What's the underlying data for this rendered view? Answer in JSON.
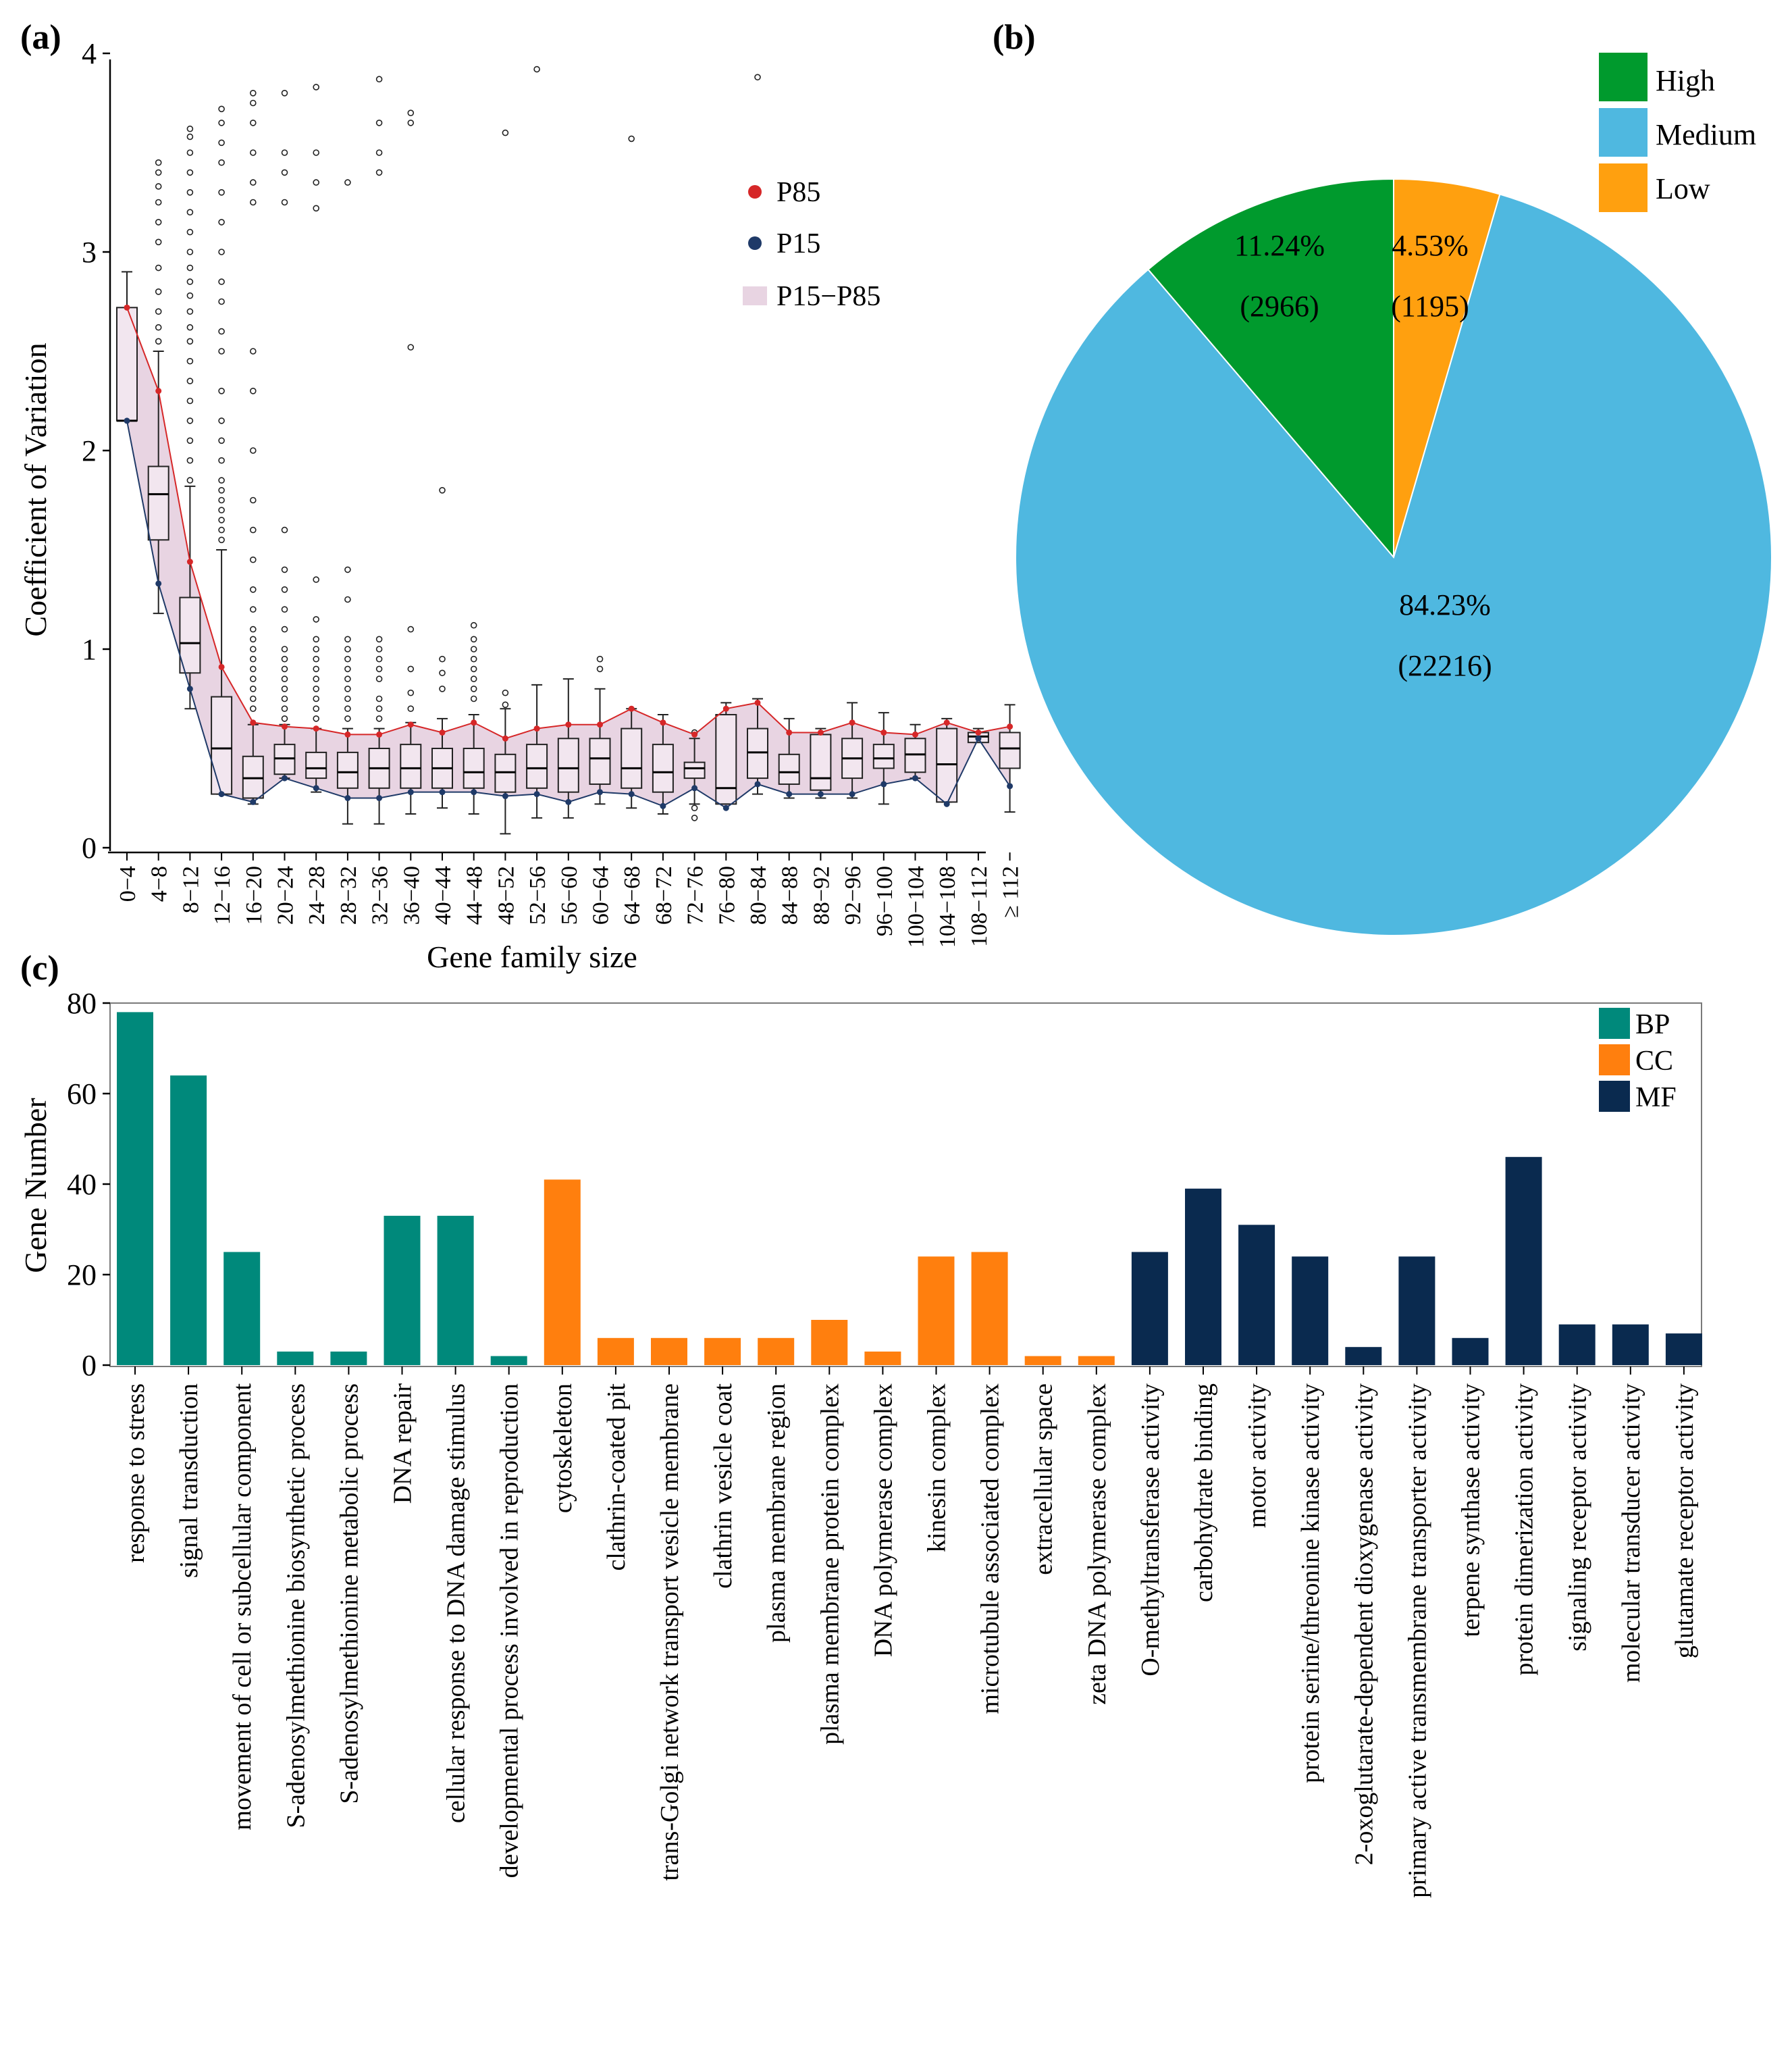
{
  "panel_labels": [
    "(a)",
    "(b)",
    "(c)"
  ],
  "chart_data": [
    {
      "panel": "(a)",
      "type": "box",
      "xlabel": "Gene family size",
      "ylabel": "Coefficient of Variation",
      "ylim": [
        0,
        4
      ],
      "yticks": [
        0,
        1,
        2,
        3,
        4
      ],
      "legend": [
        "P85",
        "P15",
        "P15−P85"
      ],
      "legend_position": "top-right",
      "colors": {
        "p85": "#d62728",
        "p15": "#1f3a68",
        "band": "#e8d4e2",
        "box_fill": "#f2e6ef"
      },
      "categories": [
        "0−4",
        "4−8",
        "8−12",
        "12−16",
        "16−20",
        "20−24",
        "24−28",
        "28−32",
        "32−36",
        "36−40",
        "40−44",
        "44−48",
        "48−52",
        "52−56",
        "56−60",
        "60−64",
        "64−68",
        "68−72",
        "72−76",
        "76−80",
        "80−84",
        "84−88",
        "88−92",
        "92−96",
        "96−100",
        "100−104",
        "104−108",
        "108−112",
        "≥ 112"
      ],
      "q1": [
        2.15,
        1.55,
        0.88,
        0.27,
        0.25,
        0.37,
        0.35,
        0.3,
        0.3,
        0.3,
        0.3,
        0.3,
        0.28,
        0.3,
        0.28,
        0.32,
        0.3,
        0.28,
        0.35,
        0.22,
        0.35,
        0.32,
        0.29,
        0.35,
        0.4,
        0.38,
        0.23,
        0.53,
        0.4
      ],
      "median": [
        2.15,
        1.78,
        1.03,
        0.5,
        0.35,
        0.45,
        0.4,
        0.38,
        0.4,
        0.4,
        0.4,
        0.38,
        0.38,
        0.4,
        0.4,
        0.45,
        0.4,
        0.38,
        0.4,
        0.3,
        0.48,
        0.38,
        0.35,
        0.45,
        0.45,
        0.47,
        0.42,
        0.56,
        0.5
      ],
      "q3": [
        2.72,
        1.92,
        1.26,
        0.76,
        0.46,
        0.52,
        0.48,
        0.48,
        0.5,
        0.52,
        0.5,
        0.5,
        0.47,
        0.52,
        0.55,
        0.55,
        0.6,
        0.52,
        0.43,
        0.67,
        0.6,
        0.47,
        0.57,
        0.55,
        0.52,
        0.55,
        0.6,
        0.58,
        0.58
      ],
      "whisker_low": [
        2.15,
        1.18,
        0.7,
        0.27,
        0.22,
        0.35,
        0.28,
        0.12,
        0.12,
        0.17,
        0.2,
        0.17,
        0.07,
        0.15,
        0.15,
        0.22,
        0.2,
        0.17,
        0.22,
        0.22,
        0.27,
        0.25,
        0.25,
        0.25,
        0.22,
        0.35,
        0.23,
        0.53,
        0.18
      ],
      "whisker_high": [
        2.9,
        2.5,
        1.82,
        1.5,
        0.62,
        0.62,
        0.6,
        0.6,
        0.6,
        0.63,
        0.65,
        0.67,
        0.7,
        0.82,
        0.85,
        0.8,
        0.7,
        0.67,
        0.55,
        0.73,
        0.75,
        0.65,
        0.6,
        0.73,
        0.68,
        0.62,
        0.65,
        0.6,
        0.72
      ],
      "p85": [
        2.72,
        2.3,
        1.44,
        0.91,
        0.63,
        0.61,
        0.6,
        0.57,
        0.57,
        0.62,
        0.58,
        0.63,
        0.55,
        0.6,
        0.62,
        0.62,
        0.7,
        0.63,
        0.57,
        0.7,
        0.73,
        0.58,
        0.58,
        0.63,
        0.58,
        0.57,
        0.63,
        0.58,
        0.61
      ],
      "p15": [
        2.15,
        1.33,
        0.8,
        0.27,
        0.23,
        0.35,
        0.3,
        0.25,
        0.25,
        0.28,
        0.28,
        0.28,
        0.26,
        0.27,
        0.23,
        0.28,
        0.27,
        0.21,
        0.3,
        0.2,
        0.32,
        0.27,
        0.27,
        0.27,
        0.32,
        0.35,
        0.22,
        0.55,
        0.31
      ],
      "outliers": [
        [],
        [
          2.55,
          2.62,
          2.7,
          2.8,
          2.92,
          3.05,
          3.15,
          3.25,
          3.33,
          3.4,
          3.45
        ],
        [
          1.85,
          1.95,
          2.05,
          2.15,
          2.25,
          2.35,
          2.45,
          2.55,
          2.62,
          2.7,
          2.78,
          2.85,
          2.92,
          3.0,
          3.1,
          3.2,
          3.3,
          3.4,
          3.5,
          3.58,
          3.62
        ],
        [
          1.55,
          1.6,
          1.65,
          1.7,
          1.75,
          1.8,
          1.85,
          1.95,
          2.05,
          2.15,
          2.3,
          2.5,
          2.6,
          2.75,
          2.85,
          3.0,
          3.15,
          3.3,
          3.45,
          3.55,
          3.65,
          3.72
        ],
        [
          0.7,
          0.75,
          0.8,
          0.85,
          0.9,
          0.95,
          1.0,
          1.05,
          1.1,
          1.2,
          1.3,
          1.45,
          1.6,
          1.75,
          2.0,
          2.3,
          2.5,
          3.25,
          3.35,
          3.5,
          3.65,
          3.75,
          3.8
        ],
        [
          0.65,
          0.7,
          0.75,
          0.8,
          0.85,
          0.9,
          0.95,
          1.0,
          1.1,
          1.2,
          1.3,
          1.4,
          1.6,
          3.25,
          3.4,
          3.5,
          3.8
        ],
        [
          0.65,
          0.7,
          0.75,
          0.8,
          0.85,
          0.9,
          0.95,
          1.0,
          1.05,
          1.15,
          1.35,
          3.22,
          3.35,
          3.5,
          3.83
        ],
        [
          0.65,
          0.7,
          0.75,
          0.8,
          0.85,
          0.9,
          0.95,
          1.0,
          1.05,
          1.25,
          1.4,
          3.35
        ],
        [
          0.65,
          0.7,
          0.75,
          0.85,
          0.9,
          0.95,
          1.0,
          1.05,
          3.4,
          3.5,
          3.65,
          3.87
        ],
        [
          0.7,
          0.78,
          0.9,
          1.1,
          2.52,
          3.65,
          3.7
        ],
        [
          0.8,
          0.88,
          0.95,
          1.8
        ],
        [
          0.75,
          0.8,
          0.85,
          0.9,
          0.95,
          1.0,
          1.05,
          1.12
        ],
        [
          0.72,
          0.78,
          3.6
        ],
        [
          3.92
        ],
        [],
        [
          0.9,
          0.95
        ],
        [
          3.57
        ],
        [],
        [
          0.15,
          0.2,
          0.58
        ],
        [],
        [
          3.88
        ],
        [],
        [],
        [],
        [],
        [],
        [],
        [],
        []
      ]
    },
    {
      "panel": "(b)",
      "type": "pie",
      "labels": [
        "High",
        "Medium",
        "Low"
      ],
      "values": [
        2966,
        22216,
        1195
      ],
      "percent_labels": [
        "11.24%",
        "84.23%",
        "4.53%"
      ],
      "count_labels": [
        "(2966)",
        "(22216)",
        "(1195)"
      ],
      "colors": [
        "#009a2d",
        "#4fb8e0",
        "#ffa00f"
      ],
      "legend_position": "top-right"
    },
    {
      "panel": "(c)",
      "type": "bar",
      "ylabel": "Gene Number",
      "ylim": [
        0,
        80
      ],
      "yticks": [
        0,
        20,
        40,
        60,
        80
      ],
      "legend_position": "top-right",
      "series": [
        {
          "name": "BP",
          "color": "#00897b"
        },
        {
          "name": "CC",
          "color": "#ff7f0e"
        },
        {
          "name": "MF",
          "color": "#0a2a4f"
        }
      ],
      "categories": [
        "response to stress",
        "signal transduction",
        "movement of cell or subcellular component",
        "S-adenosylmethionine biosynthetic process",
        "S-adenosylmethionine metabolic process",
        "DNA repair",
        "cellular response to DNA damage stimulus",
        "developmental process involved in reproduction",
        "cytoskeleton",
        "clathrin-coated pit",
        "trans-Golgi network transport vesicle membrane",
        "clathrin vesicle coat",
        "plasma membrane region",
        "plasma membrane protein complex",
        "DNA polymerase complex",
        "kinesin complex",
        "microtubule associated complex",
        "extracellular space",
        "zeta DNA polymerase complex",
        "O-methyltransferase activity",
        "carbohydrate binding",
        "motor activity",
        "protein serine/threonine kinase activity",
        "2-oxoglutarate-dependent dioxygenase activity",
        "primary active transmembrane transporter activity",
        "terpene synthase activity",
        "protein dimerization activity",
        "signaling receptor activity",
        "molecular transducer activity",
        "glutamate receptor activity"
      ],
      "values": [
        78,
        64,
        25,
        3,
        3,
        33,
        33,
        2,
        41,
        6,
        6,
        6,
        6,
        10,
        3,
        24,
        25,
        2,
        2,
        25,
        39,
        31,
        24,
        4,
        24,
        6,
        46,
        9,
        9,
        7
      ],
      "groups": [
        "BP",
        "BP",
        "BP",
        "BP",
        "BP",
        "BP",
        "BP",
        "BP",
        "CC",
        "CC",
        "CC",
        "CC",
        "CC",
        "CC",
        "CC",
        "CC",
        "CC",
        "CC",
        "CC",
        "MF",
        "MF",
        "MF",
        "MF",
        "MF",
        "MF",
        "MF",
        "MF",
        "MF",
        "MF",
        "MF"
      ]
    }
  ]
}
